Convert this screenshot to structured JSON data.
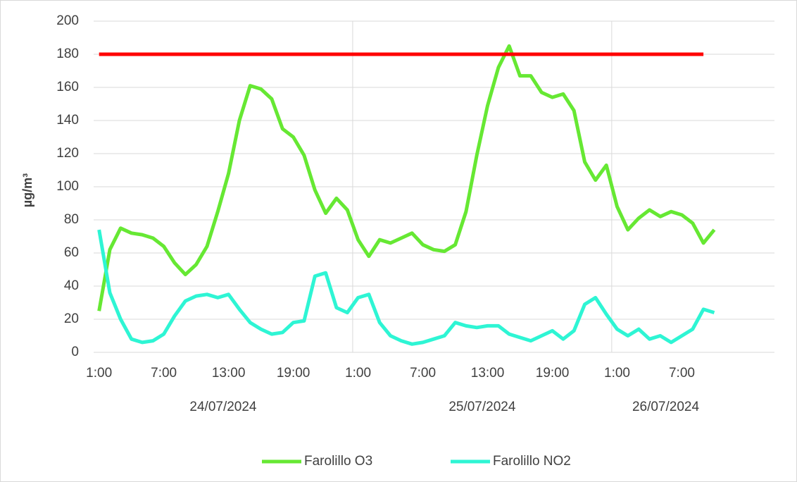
{
  "chart_data": {
    "type": "line",
    "y_label": "µg/m³",
    "ylim": [
      0,
      200
    ],
    "yticks": [
      0,
      20,
      40,
      60,
      80,
      100,
      120,
      140,
      160,
      180,
      200
    ],
    "grid": true,
    "groups": [
      {
        "label": "24/07/2024",
        "categories": [
          "1:00",
          null,
          null,
          null,
          null,
          null,
          "7:00",
          null,
          null,
          null,
          null,
          null,
          "13:00",
          null,
          null,
          null,
          null,
          null,
          "19:00",
          null,
          null,
          null,
          null,
          null
        ]
      },
      {
        "label": "25/07/2024",
        "categories": [
          "1:00",
          null,
          null,
          null,
          null,
          null,
          "7:00",
          null,
          null,
          null,
          null,
          null,
          "13:00",
          null,
          null,
          null,
          null,
          null,
          "19:00",
          null,
          null,
          null,
          null,
          null
        ]
      },
      {
        "label": "26/07/2024",
        "categories": [
          "1:00",
          null,
          null,
          null,
          null,
          null,
          "7:00",
          null,
          null,
          null
        ]
      }
    ],
    "series": [
      {
        "name": "Farolillo O3",
        "color": "#66e833",
        "values": [
          25,
          62,
          75,
          72,
          71,
          69,
          64,
          54,
          47,
          53,
          64,
          85,
          108,
          140,
          161,
          159,
          153,
          135,
          130,
          119,
          98,
          84,
          93,
          86,
          68,
          58,
          68,
          66,
          69,
          72,
          65,
          62,
          61,
          65,
          85,
          119,
          149,
          172,
          185,
          167,
          167,
          157,
          154,
          156,
          146,
          115,
          104,
          113,
          88,
          74,
          81,
          86,
          82,
          85,
          83,
          78,
          66,
          74
        ]
      },
      {
        "name": "Farolillo NO2",
        "color": "#2ef5d4",
        "values": [
          74,
          36,
          20,
          8,
          6,
          7,
          11,
          22,
          31,
          34,
          35,
          33,
          35,
          26,
          18,
          14,
          11,
          12,
          18,
          19,
          46,
          48,
          27,
          24,
          33,
          35,
          18,
          10,
          7,
          5,
          6,
          8,
          10,
          18,
          16,
          15,
          16,
          16,
          11,
          9,
          7,
          10,
          13,
          8,
          13,
          29,
          33,
          23,
          14,
          10,
          14,
          8,
          10,
          6,
          10,
          14,
          26,
          24
        ]
      },
      {
        "color": "#ff0000",
        "values": [
          180,
          180,
          180,
          180,
          180,
          180,
          180,
          180,
          180,
          180,
          180,
          180,
          180,
          180,
          180,
          180,
          180,
          180,
          180,
          180,
          180,
          180,
          180,
          180,
          180,
          180,
          180,
          180,
          180,
          180,
          180,
          180,
          180,
          180,
          180,
          180,
          180,
          180,
          180,
          180,
          180,
          180,
          180,
          180,
          180,
          180,
          180,
          180,
          180,
          180,
          180,
          180,
          180,
          180,
          180,
          180,
          180,
          null
        ]
      }
    ]
  }
}
